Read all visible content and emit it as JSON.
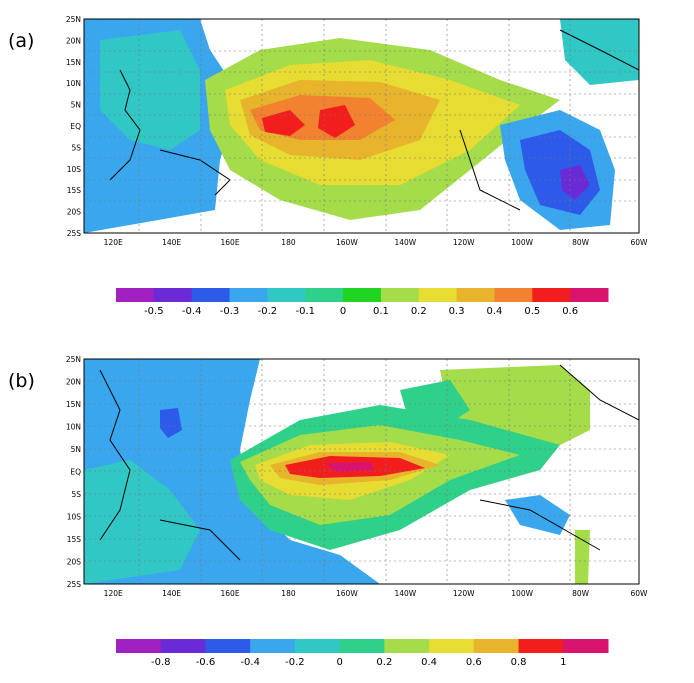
{
  "panels": [
    {
      "label": "(a)",
      "lat_ticks": [
        "25N",
        "20N",
        "15N",
        "10N",
        "5N",
        "EQ",
        "5S",
        "10S",
        "15S",
        "20S",
        "25S"
      ],
      "lon_ticks": [
        "120E",
        "140E",
        "160E",
        "180",
        "160W",
        "140W",
        "120W",
        "100W",
        "80W",
        "60W"
      ],
      "colorbar": {
        "colors": [
          "#a020c0",
          "#6a2ad6",
          "#2d5ae8",
          "#3aa6ee",
          "#30c7c5",
          "#2fd08a",
          "#22d422",
          "#a4dc4a",
          "#e6dc32",
          "#e8b42c",
          "#f28230",
          "#f21e1e",
          "#d8146e"
        ],
        "labels": [
          "-0.5",
          "-0.4",
          "-0.3",
          "-0.2",
          "-0.1",
          "0",
          "0.1",
          "0.2",
          "0.3",
          "0.4",
          "0.5",
          "0.6"
        ]
      }
    },
    {
      "label": "(b)",
      "lat_ticks": [
        "25N",
        "20N",
        "15N",
        "10N",
        "5N",
        "EQ",
        "5S",
        "10S",
        "15S",
        "20S",
        "25S"
      ],
      "lon_ticks": [
        "120E",
        "140E",
        "160E",
        "180",
        "160W",
        "140W",
        "120W",
        "100W",
        "80W",
        "60W"
      ],
      "colorbar": {
        "colors": [
          "#a020c0",
          "#6a2ad6",
          "#2d5ae8",
          "#3aa6ee",
          "#30c7c5",
          "#2fd08a",
          "#a4dc4a",
          "#e6dc32",
          "#e8b42c",
          "#f21e1e",
          "#d8146e"
        ],
        "labels": [
          "-0.8",
          "-0.6",
          "-0.4",
          "-0.2",
          "0",
          "0.2",
          "0.4",
          "0.6",
          "0.8",
          "1"
        ]
      }
    }
  ]
}
